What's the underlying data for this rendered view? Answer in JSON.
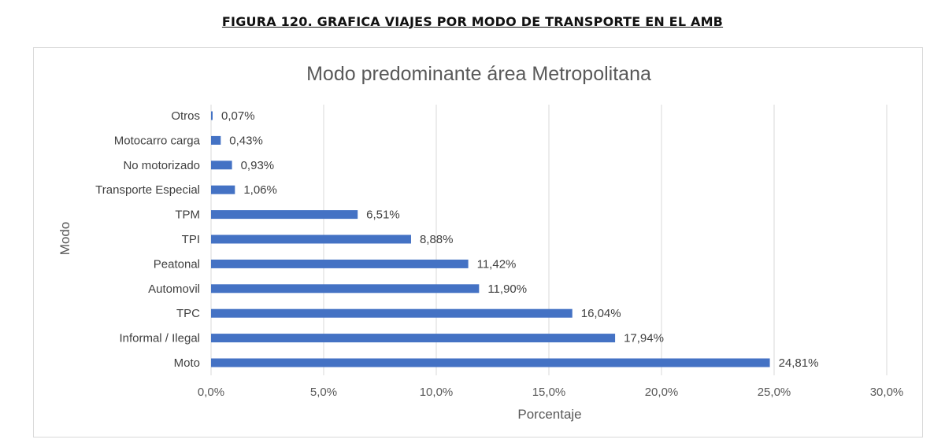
{
  "caption": "FIGURA 120. GRAFICA  VIAJES POR MODO DE TRANSPORTE EN EL AMB",
  "chart_data": {
    "type": "bar",
    "orientation": "horizontal",
    "title": "Modo predominante área Metropolitana",
    "xlabel": "Porcentaje",
    "ylabel": "Modo",
    "categories": [
      "Moto",
      "Informal / Ilegal",
      "TPC",
      "Automovil",
      "Peatonal",
      "TPI",
      "TPM",
      "Transporte Especial",
      "No motorizado",
      "Motocarro carga",
      "Otros"
    ],
    "values": [
      24.81,
      17.94,
      16.04,
      11.9,
      11.42,
      8.88,
      6.51,
      1.06,
      0.93,
      0.43,
      0.07
    ],
    "data_labels": [
      "24,81%",
      "17,94%",
      "16,04%",
      "11,90%",
      "11,42%",
      "8,88%",
      "6,51%",
      "1,06%",
      "0,93%",
      "0,43%",
      "0,07%"
    ],
    "xlim": [
      0,
      30
    ],
    "x_ticks": [
      0,
      5,
      10,
      15,
      20,
      25,
      30
    ],
    "x_tick_labels": [
      "0,0%",
      "5,0%",
      "10,0%",
      "15,0%",
      "20,0%",
      "25,0%",
      "30,0%"
    ],
    "grid": true,
    "legend": "none",
    "bar_color": "#4472c4"
  }
}
